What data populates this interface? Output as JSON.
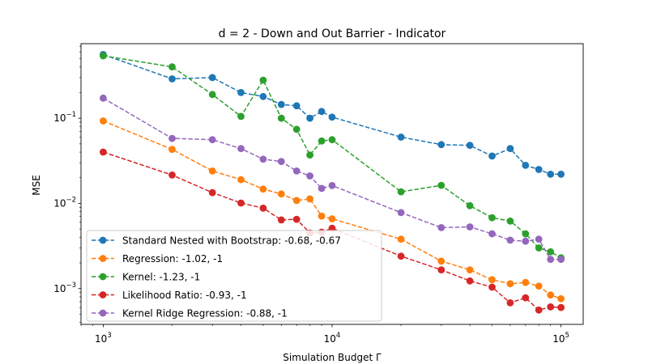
{
  "chart_data": {
    "type": "line",
    "title": "d = 2 - Down and Out Barrier - Indicator",
    "xlabel": "Simulation Budget Γ",
    "ylabel": "MSE",
    "xscale": "log",
    "yscale": "log",
    "xlim": [
      800,
      125000
    ],
    "ylim": [
      0.00038,
      0.75
    ],
    "x_ticks": [
      {
        "value": 1000,
        "label": "10",
        "exp": "3"
      },
      {
        "value": 10000,
        "label": "10",
        "exp": "4"
      },
      {
        "value": 100000,
        "label": "10",
        "exp": "5"
      }
    ],
    "y_ticks": [
      {
        "value": 0.001,
        "label": "10",
        "exp": "−3"
      },
      {
        "value": 0.01,
        "label": "10",
        "exp": "−2"
      },
      {
        "value": 0.1,
        "label": "10",
        "exp": "−1"
      }
    ],
    "grid": false,
    "legend_position": "lower-left",
    "x": [
      1000,
      2000,
      3000,
      4000,
      5000,
      6000,
      7000,
      8000,
      9000,
      10000,
      20000,
      30000,
      40000,
      50000,
      60000,
      70000,
      80000,
      90000,
      100000
    ],
    "series": [
      {
        "name": "Standard Nested with Bootstrap: -0.68, -0.67",
        "color": "#1f77b4",
        "values": [
          0.56,
          0.29,
          0.3,
          0.2,
          0.18,
          0.145,
          0.14,
          0.1,
          0.12,
          0.103,
          0.06,
          0.049,
          0.048,
          0.036,
          0.044,
          0.028,
          0.025,
          0.022,
          0.022
        ]
      },
      {
        "name": "Regression: -1.02, -1",
        "color": "#ff7f0e",
        "values": [
          0.093,
          0.043,
          0.024,
          0.019,
          0.0147,
          0.0129,
          0.0108,
          0.0113,
          0.0071,
          0.0066,
          0.0038,
          0.0021,
          0.00166,
          0.00127,
          0.00114,
          0.00118,
          0.00107,
          0.00084,
          0.00076
        ]
      },
      {
        "name": "Kernel: -1.23, -1",
        "color": "#2ca02c",
        "values": [
          0.54,
          0.4,
          0.19,
          0.105,
          0.28,
          0.1,
          0.074,
          0.037,
          0.054,
          0.056,
          0.0137,
          0.0163,
          0.0094,
          0.0068,
          0.0062,
          0.0044,
          0.003,
          0.0027,
          0.0023
        ]
      },
      {
        "name": "Likelihood Ratio: -0.93, -1",
        "color": "#d62728",
        "values": [
          0.04,
          0.0215,
          0.0134,
          0.0101,
          0.0088,
          0.0064,
          0.0065,
          0.0045,
          0.0046,
          0.0051,
          0.0024,
          0.00166,
          0.00123,
          0.00104,
          0.00068,
          0.00078,
          0.00056,
          0.00061,
          0.0006
        ]
      },
      {
        "name": "Kernel Ridge Regression: -0.88, -1",
        "color": "#9467bd",
        "values": [
          0.172,
          0.058,
          0.056,
          0.044,
          0.033,
          0.031,
          0.024,
          0.021,
          0.015,
          0.0162,
          0.0078,
          0.0052,
          0.0053,
          0.0044,
          0.0037,
          0.0036,
          0.0038,
          0.0022,
          0.0022
        ]
      }
    ]
  }
}
